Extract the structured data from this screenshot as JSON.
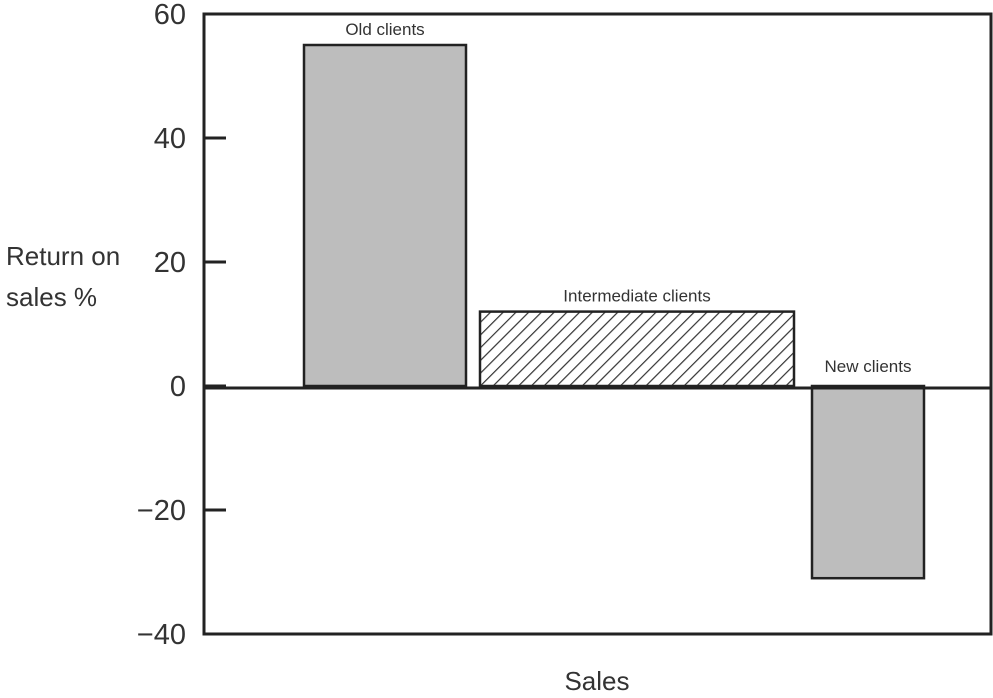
{
  "chart_data": {
    "type": "bar",
    "categories": [
      "Old clients",
      "Intermediate clients",
      "New clients"
    ],
    "values": [
      55,
      12,
      -31
    ],
    "bar_styles": [
      "solid-grey",
      "hatched",
      "solid-grey"
    ],
    "title": "",
    "xlabel": "Sales",
    "ylabel": "Return on sales %",
    "ylabel_lines": [
      "Return on",
      "sales %"
    ],
    "ylim": [
      -40,
      60
    ],
    "yticks": [
      60,
      40,
      20,
      0,
      -20,
      -40
    ],
    "ytick_labels": [
      "60",
      "40",
      "20",
      "0",
      "−20",
      "−40"
    ],
    "grid": false,
    "legend": "none",
    "colors": {
      "bar_fill": "#bdbdbd",
      "hatch": "#333333",
      "axis": "#222222"
    }
  }
}
